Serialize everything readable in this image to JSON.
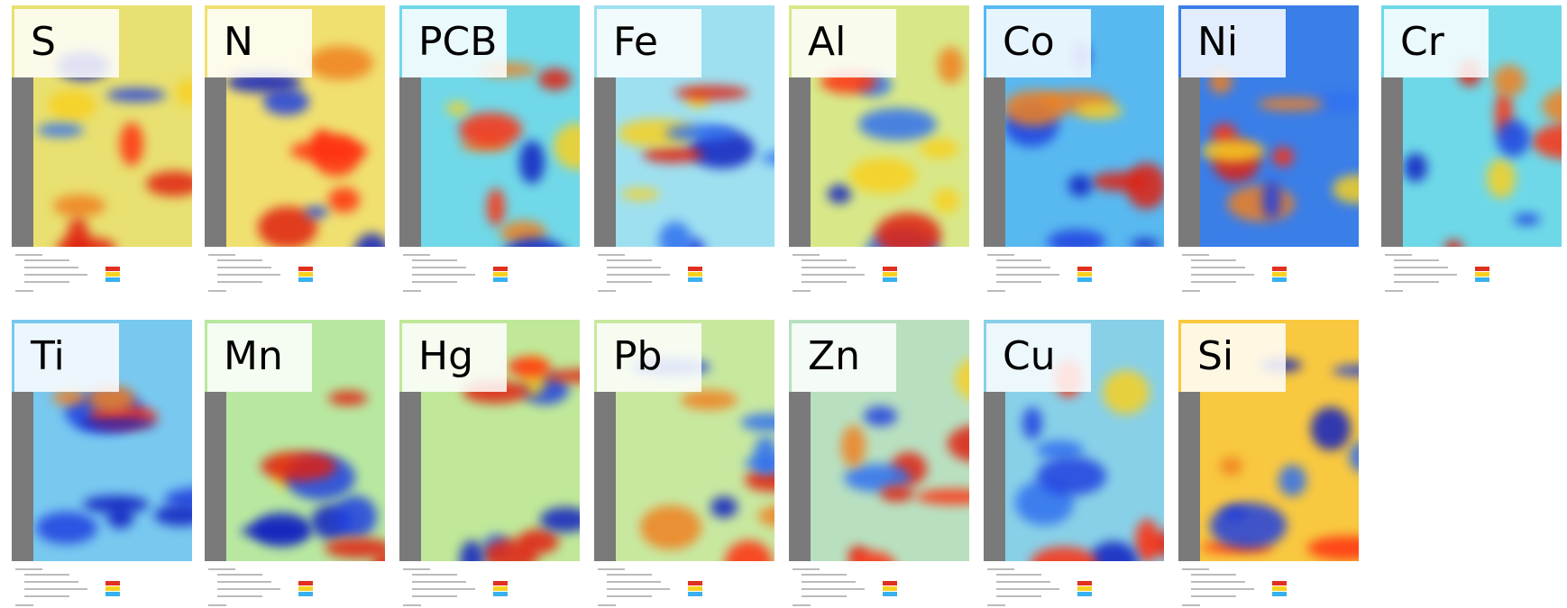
{
  "panels": [
    {
      "label": "S"
    },
    {
      "label": "N"
    },
    {
      "label": "PCB"
    },
    {
      "label": "Fe"
    },
    {
      "label": "Al"
    },
    {
      "label": "Co"
    },
    {
      "label": "Ni"
    },
    {
      "label": "Cr"
    },
    {
      "label": "Ti"
    },
    {
      "label": "Mn"
    },
    {
      "label": "Hg"
    },
    {
      "label": "Pb"
    },
    {
      "label": "Zn"
    },
    {
      "label": "Cu"
    },
    {
      "label": "Si"
    }
  ]
}
